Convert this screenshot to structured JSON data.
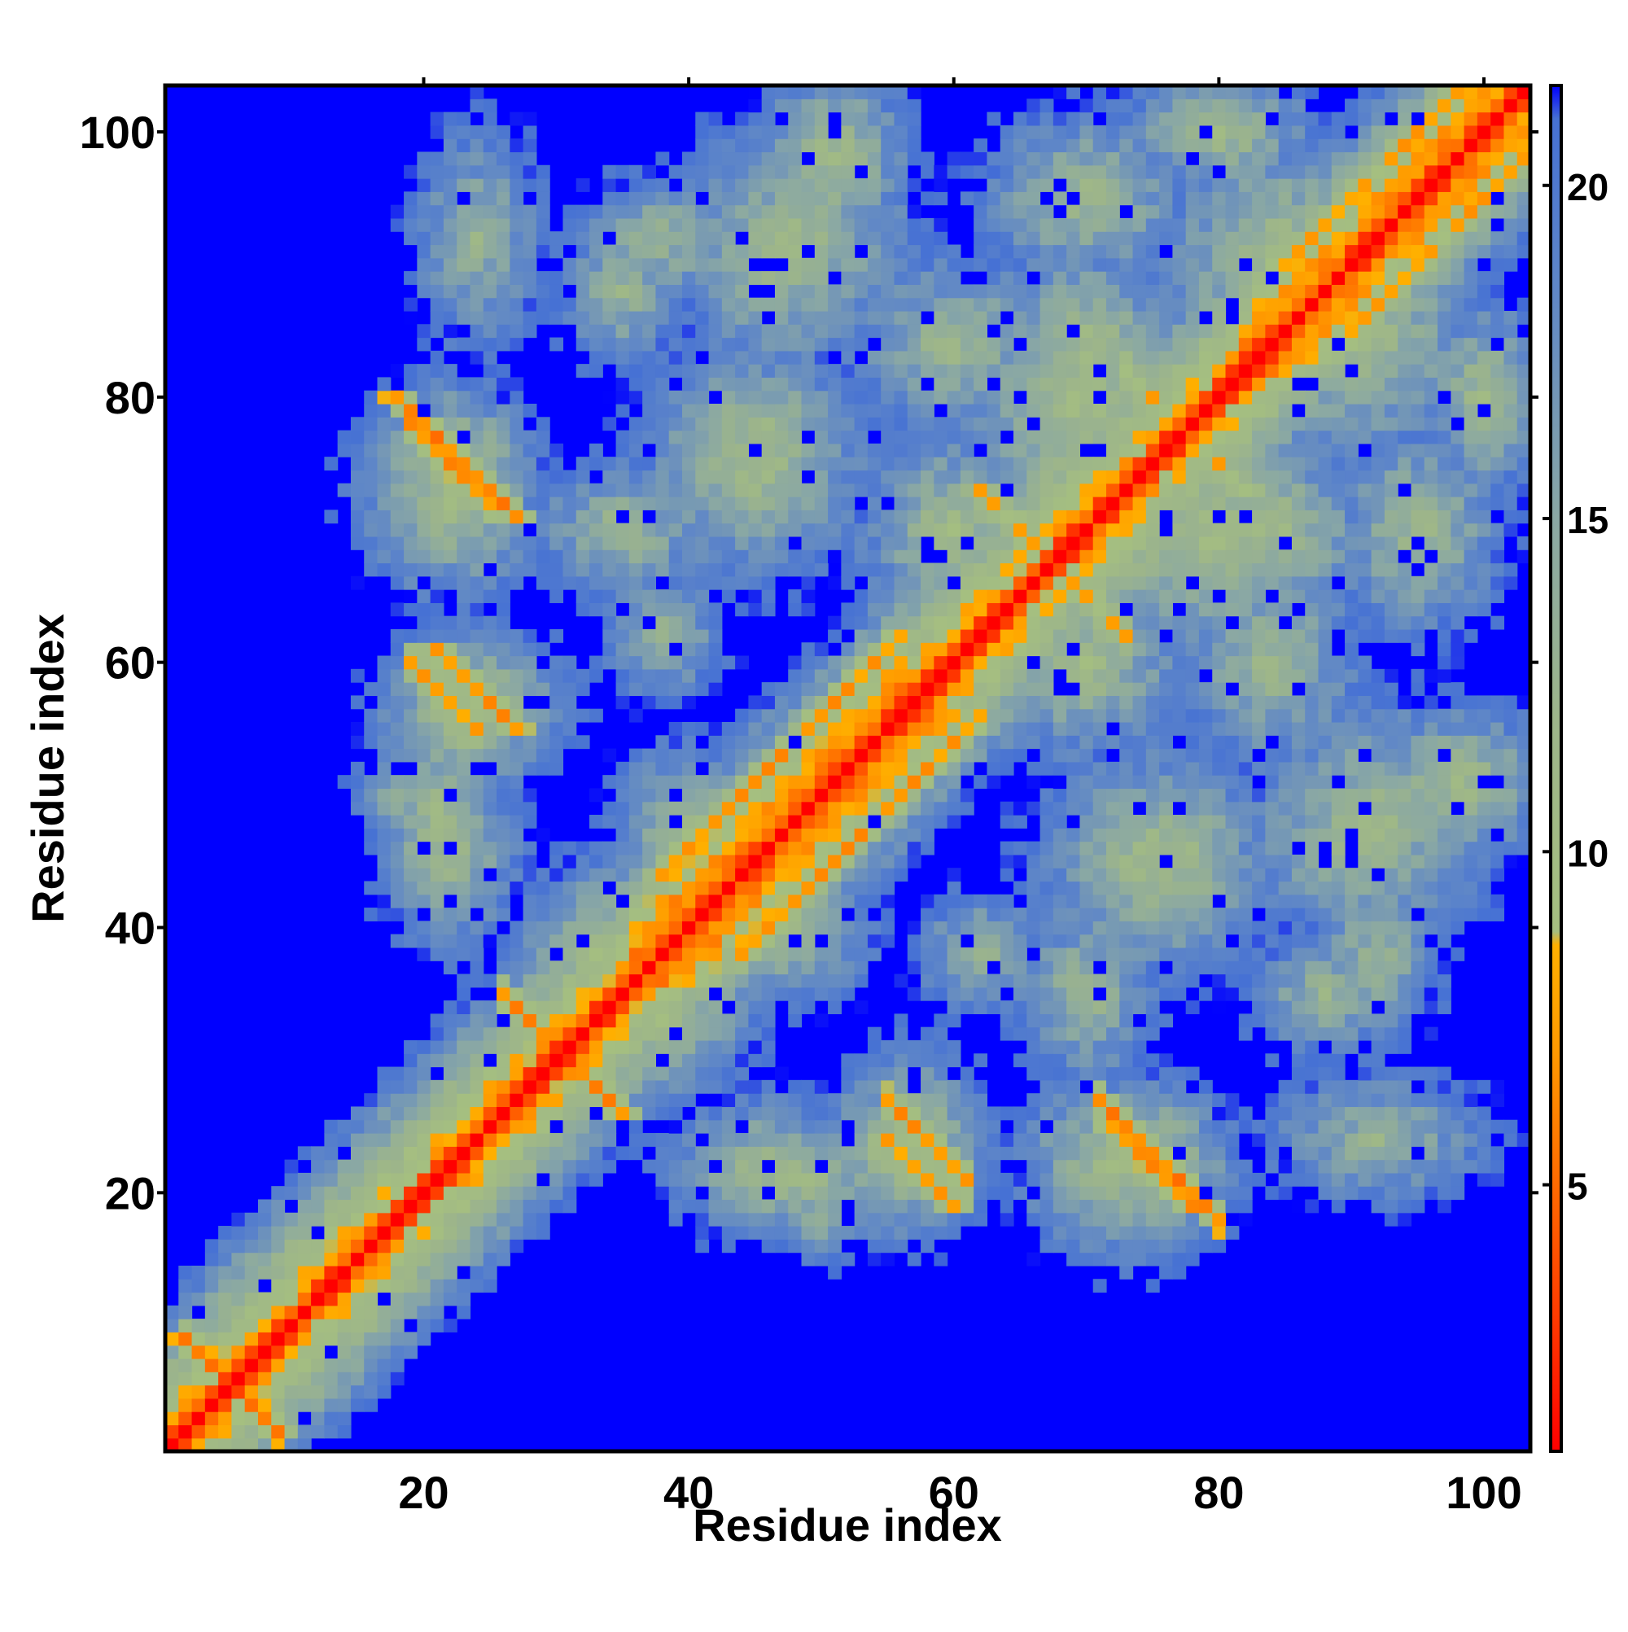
{
  "chart_data": {
    "type": "heatmap",
    "title": "",
    "xlabel": "Residue index",
    "ylabel": "Residue index",
    "n_residues": 103,
    "xlim": [
      1,
      103
    ],
    "ylim": [
      1,
      103
    ],
    "x_ticks": [
      20,
      40,
      60,
      80,
      100
    ],
    "y_ticks": [
      20,
      40,
      60,
      80,
      100
    ],
    "x_tick_labels": [
      "20",
      "40",
      "60",
      "80",
      "100"
    ],
    "y_tick_labels": [
      "20",
      "40",
      "60",
      "80",
      "100"
    ],
    "colorbar": {
      "range": [
        1,
        21.5
      ],
      "ticks": [
        5,
        10,
        15,
        20
      ],
      "tick_labels": [
        "5",
        "10",
        "15",
        "20"
      ],
      "colors": [
        {
          "value": 1,
          "color": "#ff0000"
        },
        {
          "value": 3,
          "color": "#ff3a00"
        },
        {
          "value": 5,
          "color": "#ff6a00"
        },
        {
          "value": 7,
          "color": "#ff9900"
        },
        {
          "value": 8.6,
          "color": "#ffb000"
        },
        {
          "value": 8.8,
          "color": "#a5bf80"
        },
        {
          "value": 12,
          "color": "#9db58a"
        },
        {
          "value": 15,
          "color": "#8aa8a4"
        },
        {
          "value": 18.5,
          "color": "#5e86c8"
        },
        {
          "value": 21,
          "color": "#4671d4"
        },
        {
          "value": 21.5,
          "color": "#0000ff"
        }
      ]
    },
    "cutoff_color": "#0000ff",
    "description_contacts": [
      {
        "i_range": [
          1,
          103
        ],
        "j_offset": 0,
        "distance": 3.8
      },
      {
        "i_range": [
          3,
          9
        ],
        "j_mirror_sum": 10,
        "distance": 5
      },
      {
        "i_range": [
          18,
          28
        ],
        "j_range": [
          72,
          78
        ],
        "distance": 5
      },
      {
        "i_range": [
          21,
          27
        ],
        "j_range": [
          55,
          61
        ],
        "distance": 5
      },
      {
        "i_range": [
          26,
          35
        ],
        "j_range": [
          26,
          35
        ],
        "distance": 5
      },
      {
        "i_range": [
          55,
          59
        ],
        "j_range": [
          18,
          26
        ],
        "distance": 6
      },
      {
        "i_range": [
          72,
          78
        ],
        "j_range": [
          18,
          26
        ],
        "distance": 5
      },
      {
        "i_range": [
          45,
          52
        ],
        "j_range": [
          38,
          58
        ],
        "distance": 6
      }
    ]
  }
}
